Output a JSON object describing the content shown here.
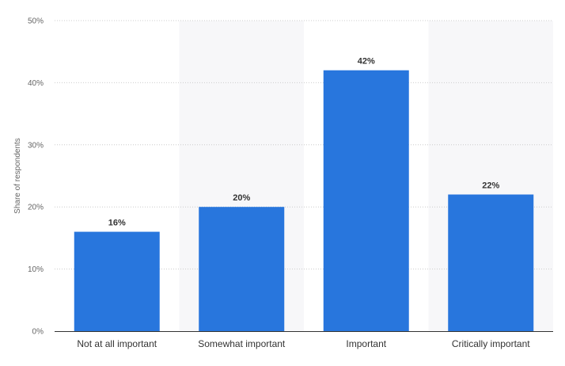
{
  "colors": {
    "bar": "#2876dd",
    "band": "#f7f7f9",
    "grid": "#cccccc",
    "axis": "#333333"
  },
  "chart_data": {
    "type": "bar",
    "categories": [
      "Not at all important",
      "Somewhat important",
      "Important",
      "Critically important"
    ],
    "values": [
      16,
      20,
      42,
      22
    ],
    "data_labels": [
      "16%",
      "20%",
      "42%",
      "22%"
    ],
    "xlabel": "",
    "ylabel": "Share of respondents",
    "ylim": [
      0,
      50
    ],
    "yticks": [
      0,
      10,
      20,
      30,
      40,
      50
    ],
    "ytick_labels": [
      "0%",
      "10%",
      "20%",
      "30%",
      "40%",
      "50%"
    ],
    "grid": true,
    "grid_style": "dotted",
    "legend": false
  }
}
